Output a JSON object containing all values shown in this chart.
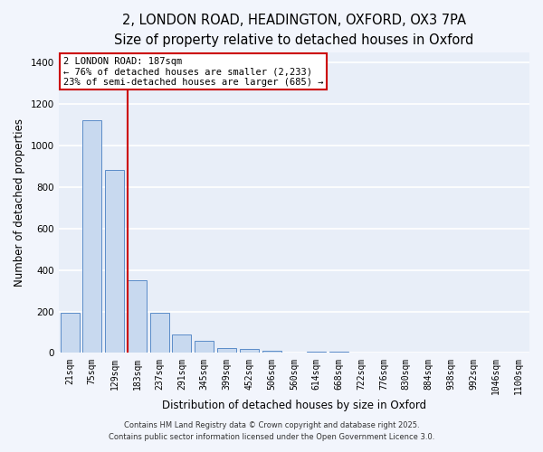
{
  "title_line1": "2, LONDON ROAD, HEADINGTON, OXFORD, OX3 7PA",
  "title_line2": "Size of property relative to detached houses in Oxford",
  "xlabel": "Distribution of detached houses by size in Oxford",
  "ylabel": "Number of detached properties",
  "categories": [
    "21sqm",
    "75sqm",
    "129sqm",
    "183sqm",
    "237sqm",
    "291sqm",
    "345sqm",
    "399sqm",
    "452sqm",
    "506sqm",
    "560sqm",
    "614sqm",
    "668sqm",
    "722sqm",
    "776sqm",
    "830sqm",
    "884sqm",
    "938sqm",
    "992sqm",
    "1046sqm",
    "1100sqm"
  ],
  "values": [
    193,
    1120,
    880,
    350,
    193,
    90,
    58,
    22,
    18,
    12,
    0,
    8,
    5,
    0,
    0,
    0,
    0,
    0,
    0,
    0,
    0
  ],
  "bar_color": "#c8d9ef",
  "bar_edge_color": "#5b8cc8",
  "background_color": "#e8eef8",
  "grid_color": "#ffffff",
  "vline_x_index": 3,
  "vline_color": "#cc0000",
  "annotation_text": "2 LONDON ROAD: 187sqm\n← 76% of detached houses are smaller (2,233)\n23% of semi-detached houses are larger (685) →",
  "annotation_box_color": "#cc0000",
  "ylim": [
    0,
    1450
  ],
  "yticks": [
    0,
    200,
    400,
    600,
    800,
    1000,
    1200,
    1400
  ],
  "footer_line1": "Contains HM Land Registry data © Crown copyright and database right 2025.",
  "footer_line2": "Contains public sector information licensed under the Open Government Licence 3.0.",
  "title_fontsize": 10.5,
  "subtitle_fontsize": 9.5,
  "axis_label_fontsize": 8.5,
  "tick_fontsize": 7,
  "annotation_fontsize": 7.5,
  "footer_fontsize": 6
}
